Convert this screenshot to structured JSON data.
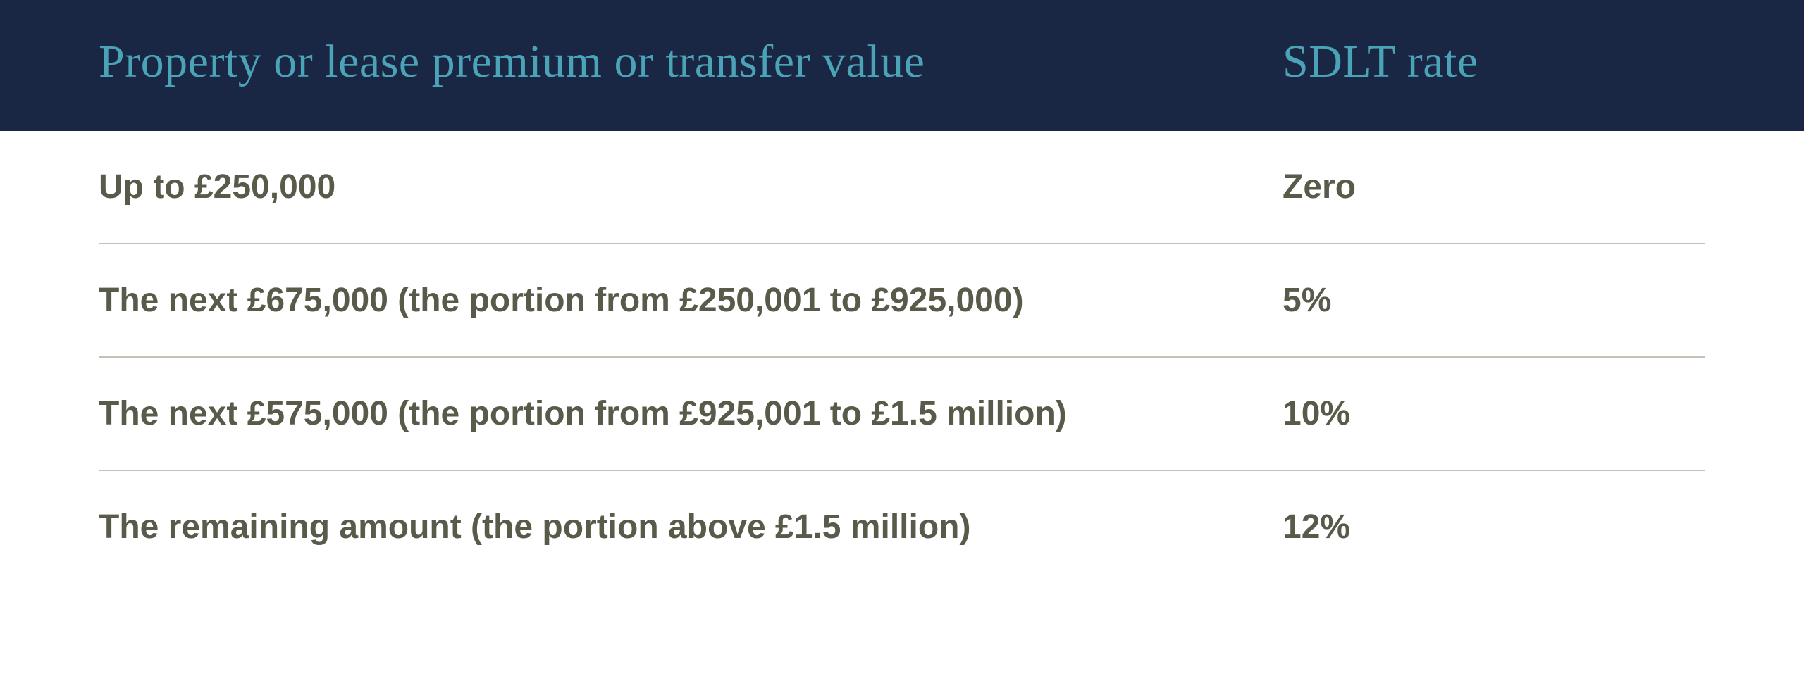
{
  "table": {
    "header": {
      "left": "Property or lease premium or transfer value",
      "right": "SDLT rate",
      "background_color": "#1a2744",
      "text_color": "#4ba3b7",
      "font_size": 66
    },
    "body": {
      "text_color": "#5a5a4a",
      "divider_color": "#c9c0b5",
      "font_size": 48,
      "rows": [
        {
          "left": "Up to £250,000",
          "right": "Zero"
        },
        {
          "left": "The next £675,000 (the portion from £250,001 to £925,000)",
          "right": "5%"
        },
        {
          "left": "The next £575,000 (the portion from £925,001 to £1.5 million)",
          "right": "10%"
        },
        {
          "left": "The remaining amount (the portion above £1.5 million)",
          "right": "12%"
        }
      ]
    }
  }
}
